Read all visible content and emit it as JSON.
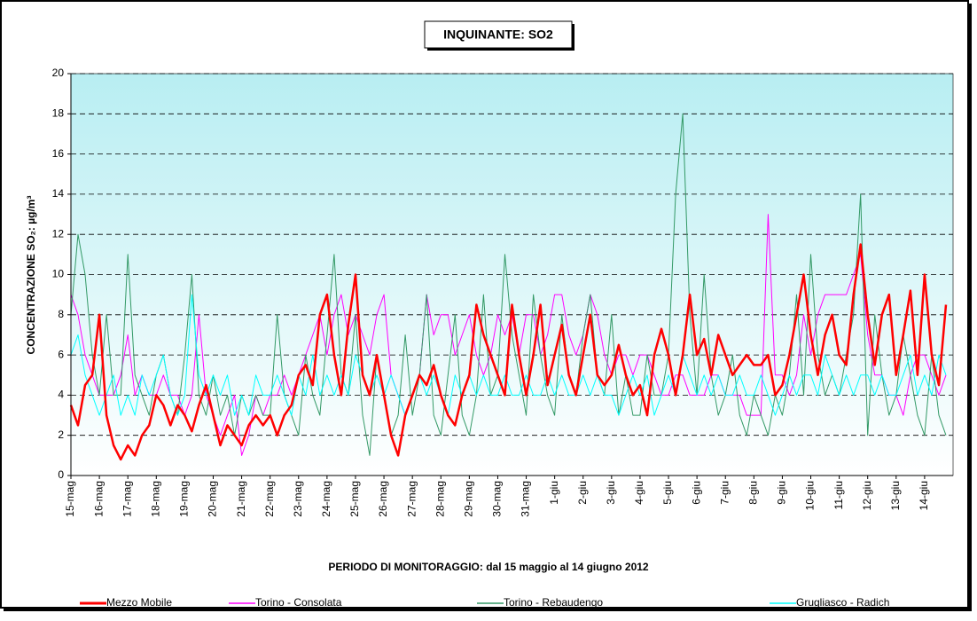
{
  "chart_data": {
    "type": "line",
    "title": "INQUINANTE: SO2",
    "y_label": "CONCENTRAZIONE SO₂:  µg/m³",
    "x_label": "PERIODO DI MONITORAGGIO: dal 15 maggio al 14 giugno 2012",
    "categories": [
      "15-mag",
      null,
      null,
      null,
      "16-mag",
      null,
      null,
      null,
      "17-mag",
      null,
      null,
      null,
      "18-mag",
      null,
      null,
      null,
      "19-mag",
      null,
      null,
      null,
      "20-mag",
      null,
      null,
      null,
      "21-mag",
      null,
      null,
      null,
      "22-mag",
      null,
      null,
      null,
      "23-mag",
      null,
      null,
      null,
      "24-mag",
      null,
      null,
      null,
      "25-mag",
      null,
      null,
      null,
      "26-mag",
      null,
      null,
      null,
      "27-mag",
      null,
      null,
      null,
      "28-mag",
      null,
      null,
      null,
      "29-mag",
      null,
      null,
      null,
      "30-mag",
      null,
      null,
      null,
      "31-mag",
      null,
      null,
      null,
      "1-giu",
      null,
      null,
      null,
      "2-giu",
      null,
      null,
      null,
      "3-giu",
      null,
      null,
      null,
      "4-giu",
      null,
      null,
      null,
      "5-giu",
      null,
      null,
      null,
      "6-giu",
      null,
      null,
      null,
      "7-giu",
      null,
      null,
      null,
      "8-giu",
      null,
      null,
      null,
      "9-giu",
      null,
      null,
      null,
      "10-giu",
      null,
      null,
      null,
      "11-giu",
      null,
      null,
      null,
      "12-giu",
      null,
      null,
      null,
      "13-giu",
      null,
      null,
      null,
      "14-giu",
      null,
      null,
      null
    ],
    "series": [
      {
        "name": "Torino - Consolata",
        "color": "#ff00ff",
        "width": 1,
        "values": [
          9,
          8,
          6,
          5,
          4,
          4,
          4,
          5,
          7,
          4,
          5,
          4,
          4,
          5,
          4,
          4,
          3,
          4,
          8,
          4,
          3,
          2,
          3,
          4,
          1,
          2,
          4,
          3,
          4,
          4,
          5,
          4,
          5,
          6,
          7,
          8,
          6,
          8,
          9,
          7,
          8,
          7,
          6,
          8,
          9,
          5,
          4,
          3,
          4,
          5,
          9,
          7,
          8,
          8,
          6,
          7,
          8,
          6,
          5,
          6,
          8,
          7,
          8,
          6,
          8,
          8,
          6,
          7,
          9,
          9,
          7,
          6,
          7,
          9,
          8,
          6,
          5,
          6,
          6,
          5,
          6,
          6,
          5,
          4,
          4,
          5,
          5,
          4,
          4,
          4,
          5,
          5,
          4,
          4,
          4,
          3,
          3,
          3,
          13,
          5,
          5,
          4,
          5,
          8,
          6,
          8,
          9,
          9,
          9,
          9,
          10,
          11,
          7,
          5,
          5,
          4,
          4,
          3,
          5,
          6,
          6,
          5,
          4,
          5
        ]
      },
      {
        "name": "Torino - Rebaudengo",
        "color": "#339966",
        "width": 1,
        "values": [
          8,
          12,
          10,
          6,
          4,
          8,
          4,
          4,
          11,
          5,
          4,
          3,
          5,
          6,
          4,
          3,
          6,
          10,
          4,
          3,
          5,
          3,
          4,
          2,
          4,
          3,
          4,
          3,
          3,
          8,
          4,
          3,
          2,
          6,
          4,
          3,
          7,
          11,
          5,
          4,
          8,
          3,
          1,
          6,
          4,
          2,
          3,
          7,
          3,
          5,
          9,
          3,
          2,
          5,
          8,
          3,
          2,
          4,
          9,
          4,
          5,
          11,
          7,
          5,
          3,
          9,
          6,
          4,
          3,
          8,
          5,
          4,
          7,
          9,
          5,
          4,
          8,
          3,
          5,
          3,
          3,
          6,
          4,
          4,
          6,
          14,
          18,
          8,
          4,
          10,
          5,
          3,
          4,
          6,
          3,
          2,
          4,
          3,
          2,
          4,
          3,
          5,
          9,
          4,
          11,
          6,
          4,
          5,
          4,
          6,
          8,
          14,
          2,
          8,
          5,
          3,
          4,
          7,
          5,
          3,
          2,
          6,
          3,
          2
        ]
      },
      {
        "name": "Grugliasco - Radich",
        "color": "#00ffff",
        "width": 1,
        "values": [
          6,
          7,
          5,
          4,
          3,
          4,
          5,
          3,
          4,
          3,
          5,
          4,
          5,
          6,
          4,
          3,
          4,
          9,
          5,
          4,
          5,
          4,
          5,
          3,
          4,
          3,
          5,
          4,
          4,
          5,
          4,
          3,
          5,
          4,
          6,
          4,
          5,
          4,
          5,
          4,
          6,
          5,
          4,
          5,
          4,
          5,
          4,
          3,
          4,
          5,
          4,
          5,
          4,
          3,
          5,
          4,
          5,
          4,
          5,
          4,
          4,
          5,
          4,
          4,
          5,
          4,
          4,
          5,
          4,
          5,
          4,
          4,
          5,
          4,
          5,
          4,
          4,
          3,
          4,
          5,
          4,
          5,
          3,
          4,
          5,
          4,
          6,
          5,
          4,
          5,
          4,
          5,
          4,
          4,
          5,
          4,
          4,
          5,
          4,
          3,
          4,
          5,
          4,
          5,
          5,
          4,
          6,
          5,
          4,
          5,
          4,
          5,
          5,
          4,
          5,
          4,
          4,
          5,
          6,
          4,
          5,
          4,
          6,
          5
        ]
      },
      {
        "name": "Mezzo Mobile",
        "color": "#ff0000",
        "width": 2.5,
        "values": [
          3.5,
          2.5,
          4.5,
          5,
          8,
          3,
          1.5,
          0.8,
          1.5,
          1,
          2,
          2.5,
          4,
          3.5,
          2.5,
          3.5,
          3,
          2.2,
          3.5,
          4.5,
          3,
          1.5,
          2.5,
          2,
          1.5,
          2.5,
          3,
          2.5,
          3,
          2,
          3,
          3.5,
          5,
          5.5,
          4.5,
          8,
          9,
          6,
          4,
          7.5,
          10,
          5,
          4,
          6,
          4,
          2,
          1,
          3,
          4,
          5,
          4.5,
          5.5,
          4,
          3,
          2.5,
          4,
          5,
          8.5,
          7,
          6,
          5,
          4,
          8.5,
          6,
          4,
          6,
          8.5,
          4.5,
          6,
          7.5,
          5,
          4,
          6,
          8,
          5,
          4.5,
          5,
          6.5,
          5,
          4,
          4.5,
          3,
          6,
          7.3,
          6,
          4,
          6,
          9,
          6,
          6.8,
          5,
          7,
          6,
          5,
          5.5,
          6,
          5.5,
          5.5,
          6,
          4,
          4.5,
          6,
          8,
          10,
          7,
          5,
          7,
          8,
          6,
          5.5,
          9,
          11.5,
          8,
          5.5,
          8,
          9,
          5,
          7,
          9.2,
          5,
          10,
          6,
          4.5,
          8.5
        ]
      }
    ],
    "legend_order": [
      3,
      0,
      1,
      2
    ],
    "ylim": [
      0,
      20
    ],
    "yticks": [
      0,
      2,
      4,
      6,
      8,
      10,
      12,
      14,
      16,
      18,
      20
    ],
    "grid": true
  }
}
